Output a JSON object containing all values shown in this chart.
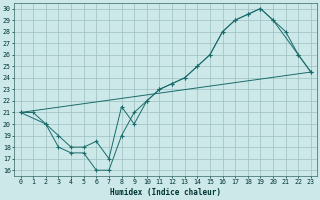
{
  "xlabel": "Humidex (Indice chaleur)",
  "xlim": [
    -0.5,
    23.5
  ],
  "ylim": [
    15.5,
    30.5
  ],
  "xticks": [
    0,
    1,
    2,
    3,
    4,
    5,
    6,
    7,
    8,
    9,
    10,
    11,
    12,
    13,
    14,
    15,
    16,
    17,
    18,
    19,
    20,
    21,
    22,
    23
  ],
  "yticks": [
    16,
    17,
    18,
    19,
    20,
    21,
    22,
    23,
    24,
    25,
    26,
    27,
    28,
    29,
    30
  ],
  "bg_color": "#cce8e8",
  "grid_color": "#9bbfbf",
  "line_color": "#1a6b6b",
  "line1_x": [
    0,
    1,
    2,
    3,
    4,
    5,
    6,
    7,
    8,
    9,
    10,
    11,
    12,
    13,
    14,
    15,
    16,
    17,
    18,
    19,
    20,
    21,
    22,
    23
  ],
  "line1_y": [
    21.0,
    21.0,
    20.0,
    18.0,
    17.5,
    17.5,
    16.0,
    16.0,
    19.0,
    21.0,
    22.0,
    23.0,
    23.5,
    24.0,
    25.0,
    26.0,
    28.0,
    29.0,
    29.5,
    30.0,
    29.0,
    28.0,
    26.0,
    24.5
  ],
  "line2_x": [
    0,
    2,
    3,
    4,
    5,
    6,
    7,
    8,
    9,
    10,
    11,
    12,
    13,
    14,
    15,
    16,
    17,
    18,
    19,
    20,
    22,
    23
  ],
  "line2_y": [
    21.0,
    20.0,
    19.0,
    18.0,
    18.0,
    18.5,
    17.0,
    21.5,
    20.0,
    22.0,
    23.0,
    23.5,
    24.0,
    25.0,
    26.0,
    28.0,
    29.0,
    29.5,
    30.0,
    29.0,
    26.0,
    24.5
  ],
  "line3_x": [
    0,
    23
  ],
  "line3_y": [
    21.0,
    24.5
  ]
}
